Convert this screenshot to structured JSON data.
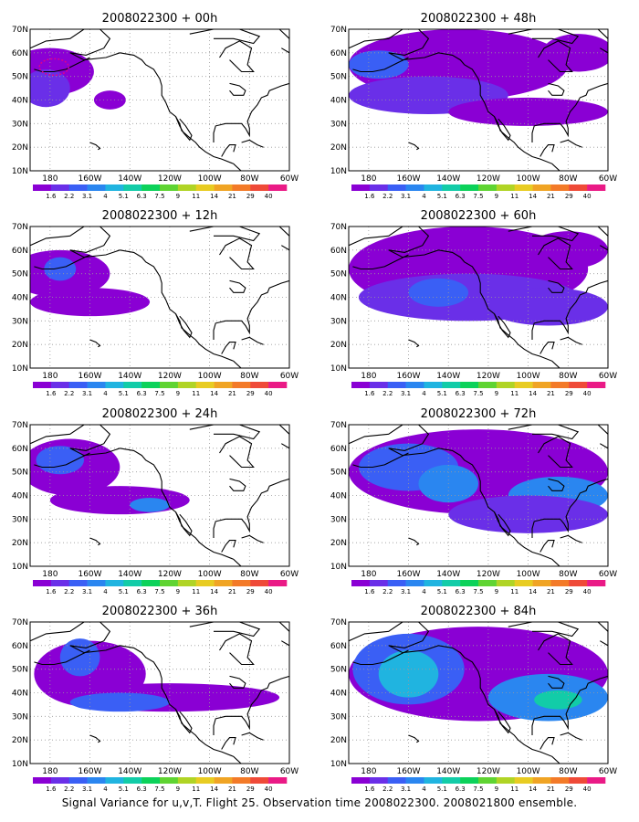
{
  "figure": {
    "caption": "Signal Variance for u,v,T. Flight 25. Observation time 2008022300. 2008021800 ensemble."
  },
  "map": {
    "lat_range": [
      10,
      70
    ],
    "lon_range": [
      170,
      300
    ],
    "lat_ticks": [
      "70N",
      "60N",
      "50N",
      "40N",
      "30N",
      "20N",
      "10N"
    ],
    "lon_ticks": [
      "180",
      "160W",
      "140W",
      "120W",
      "100W",
      "80W",
      "60W"
    ],
    "gridlines": true
  },
  "colorbar": {
    "labels": [
      "1.6",
      "2.2",
      "3.1",
      "4",
      "5.1",
      "6.3",
      "7.5",
      "9",
      "11",
      "14",
      "21",
      "29",
      "40"
    ],
    "colors": [
      "#8a00d4",
      "#6a2fe8",
      "#3a5ff5",
      "#2a86f0",
      "#20b4e0",
      "#12cca8",
      "#0cd25a",
      "#5fd432",
      "#b0d425",
      "#e8cc22",
      "#f0a424",
      "#f37a28",
      "#ef4a38",
      "#ea1a86"
    ]
  },
  "panels": [
    {
      "title": "2008022300 + 00h"
    },
    {
      "title": "2008022300 + 48h"
    },
    {
      "title": "2008022300 + 12h"
    },
    {
      "title": "2008022300 + 60h"
    },
    {
      "title": "2008022300 + 24h"
    },
    {
      "title": "2008022300 + 72h"
    },
    {
      "title": "2008022300 + 36h"
    },
    {
      "title": "2008022300 + 84h"
    }
  ]
}
